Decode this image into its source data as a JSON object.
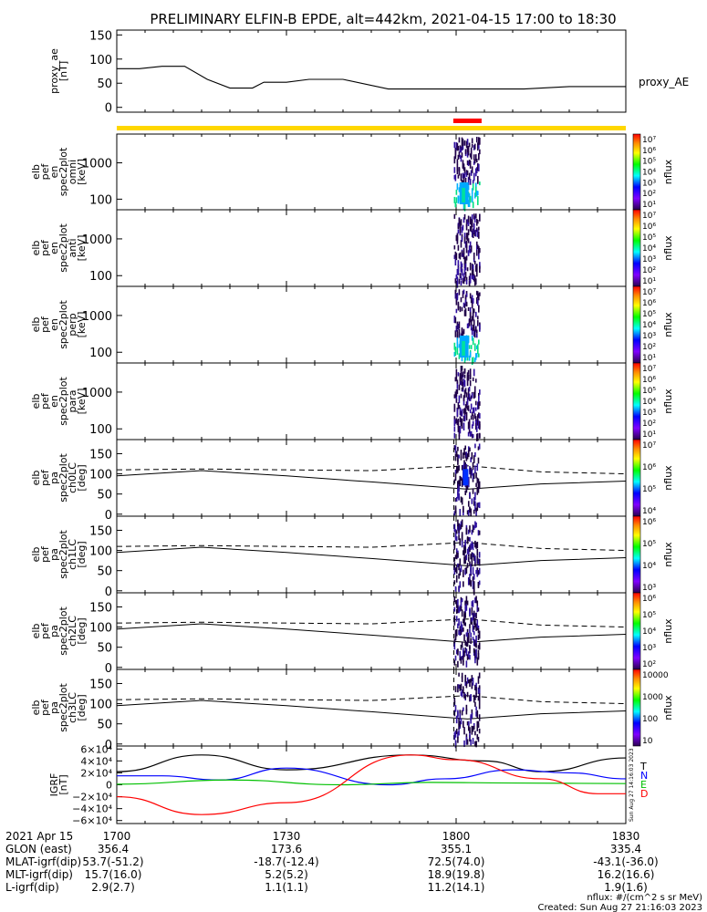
{
  "title": "PRELIMINARY ELFIN-B EPDE, alt=442km, 2021-04-15 17:00 to 18:30",
  "chart_data": [
    {
      "type": "line",
      "id": "proxy_ae",
      "ylabel_lines": [
        "proxy_ae",
        "[nT]"
      ],
      "legend": "proxy_AE",
      "ylim": [
        -10,
        160
      ],
      "yticks": [
        "150",
        "100",
        "50",
        "0"
      ],
      "ytick_values": [
        150,
        100,
        50,
        0
      ],
      "x": [
        0,
        4,
        8,
        12,
        16,
        20,
        24,
        26,
        28,
        30,
        34,
        40,
        48,
        56,
        64,
        72,
        80,
        88,
        90
      ],
      "y": [
        80,
        80,
        85,
        85,
        58,
        40,
        40,
        52,
        52,
        52,
        58,
        58,
        38,
        38,
        38,
        38,
        43,
        43,
        43
      ]
    },
    {
      "type": "heatmap",
      "id": "en_omni",
      "ylabel_lines": [
        "elb",
        "pef",
        "en",
        "spec2plot",
        "omni",
        "[keV]"
      ],
      "yticks": [
        "1000",
        "100"
      ],
      "zlabel": "nflux",
      "zticks": [
        "10⁷",
        "10⁶",
        "10⁵",
        "10⁴",
        "10³",
        "10²",
        "10¹"
      ]
    },
    {
      "type": "heatmap",
      "id": "en_anti",
      "ylabel_lines": [
        "elb",
        "pef",
        "en",
        "spec2plot",
        "anti",
        "[keV]"
      ],
      "yticks": [
        "1000",
        "100"
      ],
      "zlabel": "nflux",
      "zticks": [
        "10⁷",
        "10⁶",
        "10⁵",
        "10⁴",
        "10³",
        "10²",
        "10¹"
      ]
    },
    {
      "type": "heatmap",
      "id": "en_perp",
      "ylabel_lines": [
        "elb",
        "pef",
        "en",
        "spec2plot",
        "perp",
        "[keV]"
      ],
      "yticks": [
        "1000",
        "100"
      ],
      "zlabel": "nflux",
      "zticks": [
        "10⁷",
        "10⁶",
        "10⁵",
        "10⁴",
        "10³",
        "10²",
        "10¹"
      ]
    },
    {
      "type": "heatmap",
      "id": "en_para",
      "ylabel_lines": [
        "elb",
        "pef",
        "en",
        "spec2plot",
        "para",
        "[keV]"
      ],
      "yticks": [
        "1000",
        "100"
      ],
      "zlabel": "nflux",
      "zticks": [
        "10⁷",
        "10⁶",
        "10⁵",
        "10⁴",
        "10³",
        "10²",
        "10¹"
      ]
    },
    {
      "type": "heatmap",
      "id": "pa_ch0LC",
      "ylabel_lines": [
        "elb",
        "pef",
        "pa",
        "spec2plot",
        "ch0LC",
        "[deg]"
      ],
      "yticks": [
        "150",
        "100",
        "50",
        "0"
      ],
      "zlabel": "nflux",
      "zticks": [
        "10⁷",
        "10⁶",
        "10⁵",
        "10⁴"
      ]
    },
    {
      "type": "heatmap",
      "id": "pa_ch1LC",
      "ylabel_lines": [
        "elb",
        "pef",
        "pa",
        "spec2plot",
        "ch1LC",
        "[deg]"
      ],
      "yticks": [
        "150",
        "100",
        "50",
        "0"
      ],
      "zlabel": "nflux",
      "zticks": [
        "10⁶",
        "10⁵",
        "10⁴",
        "10³"
      ]
    },
    {
      "type": "heatmap",
      "id": "pa_ch2LC",
      "ylabel_lines": [
        "elb",
        "pef",
        "pa",
        "spec2plot",
        "ch2LC",
        "[deg]"
      ],
      "yticks": [
        "150",
        "100",
        "50",
        "0"
      ],
      "zlabel": "nflux",
      "zticks": [
        "10⁶",
        "10⁵",
        "10⁴",
        "10³",
        "10²"
      ]
    },
    {
      "type": "heatmap",
      "id": "pa_ch3LC",
      "ylabel_lines": [
        "elb",
        "pef",
        "pa",
        "spec2plot",
        "ch3LC",
        "[deg]"
      ],
      "yticks": [
        "150",
        "100",
        "50",
        "0"
      ],
      "zlabel": "nflux",
      "zticks": [
        "10000",
        "1000",
        "100",
        "10"
      ]
    },
    {
      "type": "line",
      "id": "igrf",
      "ylabel_lines": [
        "IGRF",
        "[nT]"
      ],
      "ylim": [
        -65000,
        65000
      ],
      "yticks": [
        "6×10⁴",
        "4×10⁴",
        "2×10⁴",
        "0",
        "−2×10⁴",
        "−4×10⁴",
        "−6×10⁴"
      ],
      "ytick_values": [
        60000,
        40000,
        20000,
        0,
        -20000,
        -40000,
        -60000
      ],
      "side_note": "Sun Aug 27 14:16:03 2023",
      "series": [
        {
          "name": "T",
          "color": "#000000",
          "x": [
            0,
            15,
            30,
            52,
            65,
            75,
            90
          ],
          "y": [
            22000,
            50000,
            25000,
            50000,
            40000,
            22000,
            45000
          ]
        },
        {
          "name": "N",
          "color": "#0000ff",
          "x": [
            0,
            8,
            18,
            30,
            48,
            58,
            70,
            80,
            90
          ],
          "y": [
            15000,
            15000,
            8000,
            28000,
            0,
            10000,
            25000,
            20000,
            10000
          ]
        },
        {
          "name": "E",
          "color": "#00c000",
          "x": [
            0,
            20,
            40,
            55,
            70,
            90
          ],
          "y": [
            1000,
            8000,
            0,
            4000,
            3000,
            2000
          ]
        },
        {
          "name": "D",
          "color": "#ff0000",
          "x": [
            0,
            15,
            30,
            52,
            60,
            75,
            85,
            90
          ],
          "y": [
            -20000,
            -50000,
            -30000,
            50000,
            42000,
            10000,
            -15000,
            -15000
          ]
        }
      ]
    }
  ],
  "time_axis": {
    "row_labels": [
      "2021 Apr 15",
      "GLON (east)",
      "MLAT-igrf(dip)",
      "MLT-igrf(dip)",
      "L-igrf(dip)"
    ],
    "columns": [
      {
        "time": "1700",
        "values": [
          "356.4",
          "53.7(-51.2)",
          "15.7(16.0)",
          "2.9(2.7)"
        ]
      },
      {
        "time": "1730",
        "values": [
          "173.6",
          "-18.7(-12.4)",
          "5.2(5.2)",
          "1.1(1.1)"
        ]
      },
      {
        "time": "1800",
        "values": [
          "355.1",
          "72.5(74.0)",
          "18.9(19.8)",
          "11.2(14.1)"
        ]
      },
      {
        "time": "1830",
        "values": [
          "335.4",
          "-43.1(-36.0)",
          "16.2(16.6)",
          "1.9(1.6)"
        ]
      }
    ]
  },
  "footer": {
    "units": "nflux: #/(cm^2 s sr MeV)",
    "created": "Created: Sun Aug 27 21:16:03 2023"
  },
  "colors": {
    "status_bar": "#ffd700",
    "science_zone": "#ff0000"
  }
}
